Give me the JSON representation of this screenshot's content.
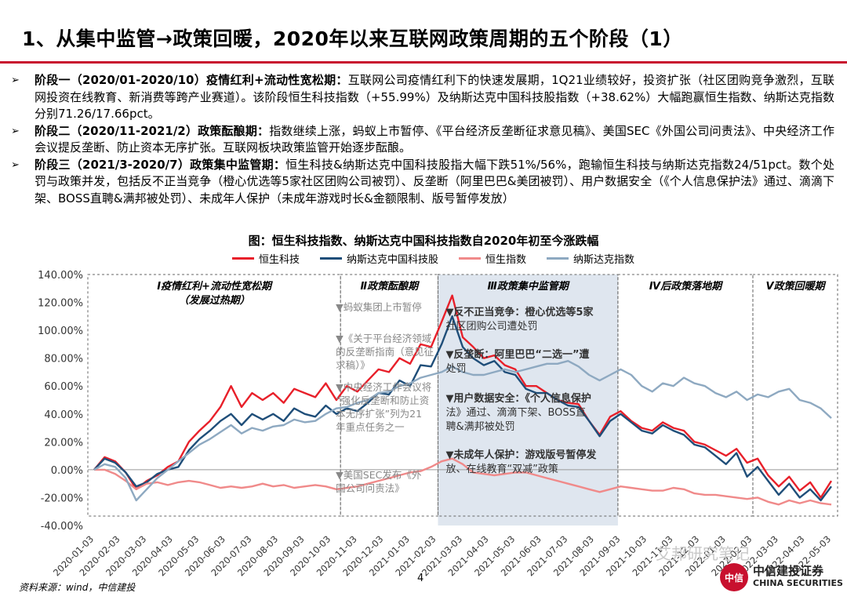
{
  "page_title": "1、从集中监管→政策回暖，2020年以来互联网政策周期的五个阶段（1）",
  "bullets": [
    {
      "mark": "➢",
      "head": "阶段一（2020/01-2020/10）疫情红利+流动性宽松期：",
      "body": "互联网公司疫情红利下的快速发展期，1Q21业绩较好，投资扩张（社区团购竞争激烈，互联网投资在线教育、新消费等跨产业赛道）。该阶段恒生科技指数（+55.99%）及纳斯达克中国科技股指数（+38.62%）大幅跑赢恒生指数、纳斯达克指数分别71.26/17.66pct。"
    },
    {
      "mark": "➢",
      "head": "阶段二（2020/11-2021/2）政策酝酿期：",
      "body": "指数继续上涨，蚂蚁上市暂停、《平台经济反垄断征求意见稿》、美国SEC《外国公司问责法》、中央经济工作会议提反垄断、防止资本无序扩张。互联网板块政策监管开始逐步酝酿。"
    },
    {
      "mark": "➢",
      "head": "阶段三（2021/3-2020/7）政策集中监管期：",
      "body": "恒生科技&纳斯达克中国科技股指大幅下跌51%/56%，跑输恒生科技与纳斯达克指数24/51pct。数个处罚与政策并发，包括反不正当竞争（橙心优选等5家社区团购公司被罚）、反垄断（阿里巴巴&美团被罚）、用户数据安全（《个人信息保护法》通过、滴滴下架、BOSS直聘&满邦被处罚）、未成年人保护（未成年游戏时长&金额限制、版号暂停发放）"
    }
  ],
  "figure_title": "图：恒生科技指数、纳斯达克中国科技指数自2020年初至今涨跌幅",
  "source": "资料来源：wind，中信建投",
  "page_number": "4",
  "watermark": "艾邦研究笔记",
  "logo": {
    "cn": "中信建投证券",
    "en": "CHINA SECURITIES",
    "seal": "中信"
  },
  "colors": {
    "accent": "#c8102e",
    "hstech": "#e8202a",
    "nasdaq_cn_tech": "#1f4e79",
    "hsi": "#f08a8a",
    "nasdaq": "#8ea9c1",
    "shade": "#dfe6ef"
  },
  "chart_data": {
    "type": "line",
    "y_ticks": [
      "140.00%",
      "120.00%",
      "100.00%",
      "80.00%",
      "60.00%",
      "40.00%",
      "20.00%",
      "0.00%",
      "-20.00%",
      "-40.00%"
    ],
    "ylim": [
      -40,
      140
    ],
    "x_ticks": [
      "2020-01-03",
      "2020-02-03",
      "2020-03-03",
      "2020-04-03",
      "2020-05-03",
      "2020-06-03",
      "2020-07-03",
      "2020-08-03",
      "2020-09-03",
      "2020-10-03",
      "2020-11-03",
      "2020-12-03",
      "2021-01-03",
      "2021-02-03",
      "2021-03-03",
      "2021-04-03",
      "2021-05-03",
      "2021-06-03",
      "2021-07-03",
      "2021-08-03",
      "2021-09-03",
      "2021-10-03",
      "2021-11-03",
      "2021-12-03",
      "2022-01-03",
      "2022-02-03",
      "2022-03-03",
      "2022-04-03",
      "2022-05-03"
    ],
    "series": [
      {
        "name": "恒生科技",
        "key": "hstech",
        "values": [
          0,
          9,
          6,
          -2,
          -14,
          -8,
          -4,
          2,
          6,
          20,
          28,
          35,
          45,
          60,
          45,
          55,
          50,
          55,
          48,
          58,
          55,
          52,
          62,
          50,
          60,
          56,
          64,
          72,
          70,
          80,
          76,
          90,
          88,
          106,
          125,
          95,
          88,
          80,
          82,
          75,
          72,
          60,
          60,
          55,
          50,
          48,
          47,
          35,
          25,
          38,
          42,
          35,
          30,
          28,
          34,
          30,
          28,
          20,
          18,
          14,
          10,
          15,
          5,
          8,
          -4,
          -12,
          -5,
          -15,
          -9,
          -20,
          -8
        ]
      },
      {
        "name": "纳斯达克中国科技股",
        "key": "nasdaq_cn_tech",
        "values": [
          0,
          8,
          5,
          -2,
          -12,
          -9,
          -3,
          0,
          2,
          14,
          22,
          28,
          35,
          40,
          32,
          40,
          36,
          40,
          35,
          44,
          40,
          38,
          46,
          40,
          44,
          42,
          48,
          55,
          54,
          64,
          60,
          75,
          74,
          90,
          110,
          88,
          80,
          75,
          78,
          70,
          68,
          58,
          55,
          55,
          50,
          46,
          45,
          35,
          24,
          35,
          40,
          34,
          28,
          26,
          32,
          28,
          25,
          18,
          16,
          10,
          4,
          12,
          -5,
          2,
          -8,
          -18,
          -10,
          -20,
          -14,
          -22,
          -12
        ]
      },
      {
        "name": "恒生指数",
        "key": "hsi",
        "values": [
          0,
          0,
          -3,
          -8,
          -14,
          -10,
          -9,
          -11,
          -9,
          -8,
          -9,
          -11,
          -13,
          -12,
          -13,
          -12,
          -10,
          -12,
          -11,
          -13,
          -12,
          -11,
          -12,
          -14,
          -13,
          -12,
          -10,
          -8,
          -6,
          -4,
          -2,
          -1,
          2,
          6,
          8,
          4,
          -2,
          -3,
          -4,
          -3,
          -2,
          -2,
          -4,
          -6,
          -8,
          -10,
          -12,
          -14,
          -16,
          -14,
          -12,
          -13,
          -14,
          -15,
          -15,
          -13,
          -14,
          -17,
          -18,
          -18,
          -19,
          -20,
          -21,
          -20,
          -23,
          -25,
          -22,
          -24,
          -22,
          -24,
          -25
        ]
      },
      {
        "name": "纳斯达克指数",
        "key": "nasdaq",
        "values": [
          0,
          4,
          2,
          -6,
          -22,
          -14,
          -6,
          0,
          6,
          12,
          18,
          22,
          27,
          32,
          26,
          30,
          28,
          31,
          32,
          36,
          34,
          35,
          40,
          44,
          45,
          48,
          50,
          55,
          56,
          60,
          62,
          66,
          68,
          70,
          74,
          70,
          68,
          68,
          70,
          72,
          70,
          72,
          74,
          76,
          76,
          78,
          74,
          68,
          64,
          68,
          72,
          68,
          60,
          56,
          62,
          60,
          66,
          62,
          60,
          55,
          52,
          56,
          50,
          54,
          52,
          56,
          58,
          50,
          48,
          44,
          37
        ]
      }
    ],
    "phase_labels": [
      {
        "label": "Ⅰ疫情红利+流动性宽松期",
        "sub": "（发展过热期）"
      },
      {
        "label": "Ⅱ政策酝酿期",
        "sub": ""
      },
      {
        "label": "Ⅲ政策集中监管期",
        "sub": ""
      },
      {
        "label": "Ⅳ后政策落地期",
        "sub": ""
      },
      {
        "label": "Ⅴ政策回暖期",
        "sub": ""
      }
    ],
    "annotations_phase2": [
      "▼蚂蚁集团上市暂停",
      "▼《关于平台经济领域的反垄断指南（意见征求稿）》",
      "▼中央经济工作会议将“强化反垄断和防止资本无序扩张”列为21年重点任务之一",
      "▼美国SEC发布《外国公司问责法》"
    ],
    "annotations_phase3": [
      {
        "head": "▼反不正当竞争：",
        "body": "橙心优选等5家社区团购公司遭处罚"
      },
      {
        "head": "▼反垄断：",
        "body": "阿里巴巴“二选一”遭处罚"
      },
      {
        "head": "▼用户数据安全：",
        "body": "《个人信息保护法》通过、滴滴下架、BOSS直聘&满邦被处罚"
      },
      {
        "head": "▼未成年人保护：",
        "body": "游戏版号暂停发放、在线教育“双减”政策"
      }
    ]
  }
}
